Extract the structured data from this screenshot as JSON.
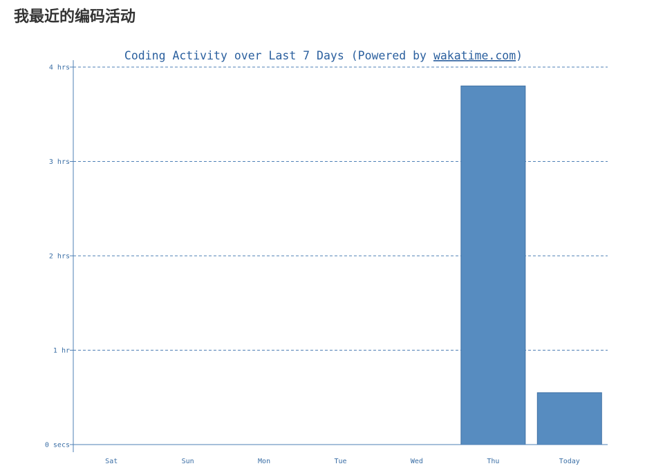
{
  "page": {
    "heading": "我最近的编码活动"
  },
  "colors": {
    "bar": "#578cc0",
    "text": "#2a5f9e"
  },
  "chart_data": {
    "type": "bar",
    "title_prefix": "Coding Activity over Last 7 Days (Powered by ",
    "title_link": "wakatime.com",
    "title_suffix": ")",
    "categories": [
      "Sat",
      "Sun",
      "Mon",
      "Tue",
      "Wed",
      "Thu",
      "Today"
    ],
    "values_hours": [
      0,
      0,
      0,
      0,
      0,
      3.8,
      0.55
    ],
    "y_ticks": [
      {
        "value": 0,
        "label": "0 secs"
      },
      {
        "value": 1,
        "label": "1 hr"
      },
      {
        "value": 2,
        "label": "2 hrs"
      },
      {
        "value": 3,
        "label": "3 hrs"
      },
      {
        "value": 4,
        "label": "4 hrs"
      }
    ],
    "ylim": [
      0,
      4
    ],
    "grid": true
  }
}
